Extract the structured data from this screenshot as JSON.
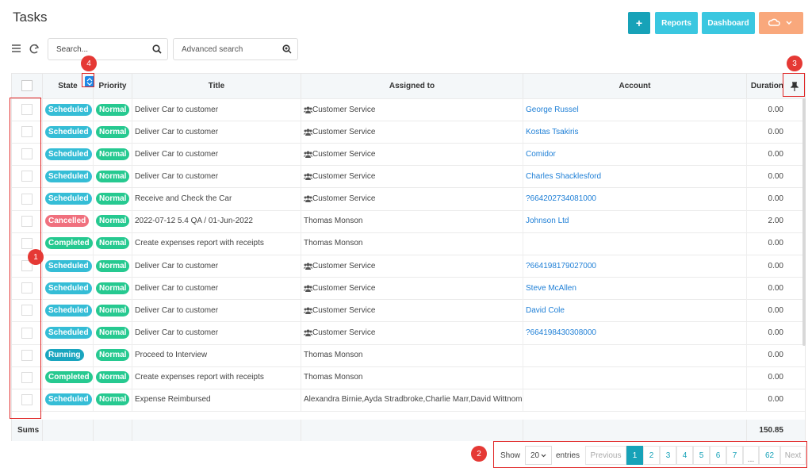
{
  "header": {
    "title": "Tasks",
    "buttons": [
      "+",
      "Reports",
      "Dashboard"
    ]
  },
  "toolbar": {
    "search_placeholder": "Search...",
    "advanced_search": "Advanced search"
  },
  "table": {
    "columns": [
      "State",
      "Priority",
      "Title",
      "Assigned to",
      "Account",
      "Duration"
    ],
    "rows": [
      {
        "state": "Scheduled",
        "state_color": "#35bdd6",
        "priority": "Normal",
        "title": "Deliver Car to customer",
        "group_icon": true,
        "assigned": "Customer Service",
        "account": "George Russel",
        "duration": "0.00"
      },
      {
        "state": "Scheduled",
        "state_color": "#35bdd6",
        "priority": "Normal",
        "title": "Deliver Car to customer",
        "group_icon": true,
        "assigned": "Customer Service",
        "account": "Kostas Tsakiris",
        "duration": "0.00"
      },
      {
        "state": "Scheduled",
        "state_color": "#35bdd6",
        "priority": "Normal",
        "title": "Deliver Car to customer",
        "group_icon": true,
        "assigned": "Customer Service",
        "account": "Comidor",
        "duration": "0.00"
      },
      {
        "state": "Scheduled",
        "state_color": "#35bdd6",
        "priority": "Normal",
        "title": "Deliver Car to customer",
        "group_icon": true,
        "assigned": "Customer Service",
        "account": "Charles Shacklesford",
        "duration": "0.00"
      },
      {
        "state": "Scheduled",
        "state_color": "#35bdd6",
        "priority": "Normal",
        "title": "Receive and Check the Car",
        "group_icon": true,
        "assigned": "Customer Service",
        "account": "?664202734081000",
        "duration": "0.00"
      },
      {
        "state": "Cancelled",
        "state_color": "#f0707e",
        "priority": "Normal",
        "title": "2022-07-12 5.4 QA / 01-Jun-2022",
        "group_icon": false,
        "assigned": "Thomas Monson",
        "account": "Johnson Ltd",
        "duration": "2.00"
      },
      {
        "state": "Completed",
        "state_color": "#26c990",
        "priority": "Normal",
        "title": "Create expenses report with receipts",
        "group_icon": false,
        "assigned": "Thomas Monson",
        "duration": "0.00"
      },
      {
        "state": "Scheduled",
        "state_color": "#35bdd6",
        "priority": "Normal",
        "title": "Deliver Car to customer",
        "group_icon": true,
        "assigned": "Customer Service",
        "account": "?664198179027000",
        "duration": "0.00"
      },
      {
        "state": "Scheduled",
        "state_color": "#35bdd6",
        "priority": "Normal",
        "title": "Deliver Car to customer",
        "group_icon": true,
        "assigned": "Customer Service",
        "account": "Steve McAllen",
        "duration": "0.00"
      },
      {
        "state": "Scheduled",
        "state_color": "#35bdd6",
        "priority": "Normal",
        "title": "Deliver Car to customer",
        "group_icon": true,
        "assigned": "Customer Service",
        "account": "David Cole",
        "duration": "0.00"
      },
      {
        "state": "Scheduled",
        "state_color": "#35bdd6",
        "priority": "Normal",
        "title": "Deliver Car to customer",
        "group_icon": true,
        "assigned": "Customer Service",
        "account": "?664198430308000",
        "duration": "0.00"
      },
      {
        "state": "Running",
        "state_color": "#1aa5bf",
        "priority": "Normal",
        "title": "Proceed to Interview",
        "group_icon": false,
        "assigned": "Thomas Monson",
        "duration": "0.00"
      },
      {
        "state": "Completed",
        "state_color": "#26c990",
        "priority": "Normal",
        "title": "Create expenses report with receipts",
        "group_icon": false,
        "assigned": "Thomas Monson",
        "duration": "0.00"
      },
      {
        "state": "Scheduled",
        "state_color": "#35bdd6",
        "priority": "Normal",
        "title": "Expense Reimbursed",
        "group_icon": false,
        "assigned": "Alexandra Birnie,Ayda Stradbroke,Charlie Marr,David Wittnom...",
        "duration": "0.00"
      }
    ],
    "sums_label": "Sums",
    "sums_duration": "150.85"
  },
  "pagination": {
    "show": "Show",
    "page_size": "20",
    "entries": "entries",
    "previous": "Previous",
    "pages": [
      "1",
      "2",
      "3",
      "4",
      "5",
      "6",
      "7"
    ],
    "ellipsis": "...",
    "last_page": "62",
    "next": "Next"
  },
  "annotations": [
    "1",
    "2",
    "3",
    "4"
  ]
}
